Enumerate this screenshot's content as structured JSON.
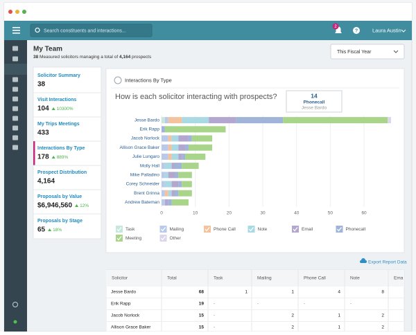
{
  "window": {
    "search_placeholder": "Search constituents and interactions...",
    "notification_count": "2",
    "user_name": "Laura Austin"
  },
  "page": {
    "title": "My Team",
    "summary": {
      "count": "38",
      "middle": "Measured solicitors managing a total of",
      "prospects": "4,164"
    },
    "period": "This Fiscal Year",
    "export": "Export Report Data"
  },
  "metrics": [
    {
      "label": "Solicitor Summary",
      "value": "38"
    },
    {
      "label": "Visit Interactions",
      "value": "104",
      "change": "10300%"
    },
    {
      "label": "My Trips Meetings",
      "value": "433"
    },
    {
      "label": "Interactions By Type",
      "value": "178",
      "change": "889%"
    },
    {
      "label": "Prospect Distribution",
      "value": "4,164"
    },
    {
      "label": "Proposals by Value",
      "value": "$6,946,560",
      "change": "12%"
    },
    {
      "label": "Proposals by Stage",
      "value": "65",
      "change": "18%"
    }
  ],
  "chart_data": {
    "type": "bar",
    "orientation": "horizontal",
    "stacked": true,
    "card_title": "Interactions By Type",
    "title": "How is each solicitor interacting with prospects?",
    "categories": [
      "Jesse Bardo",
      "Erik Rapp",
      "Jacob Norlock",
      "Allison Grace Baker",
      "Julie Lungaro",
      "Molly Hall",
      "Mike Palladino",
      "Corey Schneider",
      "Brent Grinna",
      "Andrew Bateman"
    ],
    "series": [
      {
        "name": "Task",
        "color": "#c6e8dc",
        "values": [
          1,
          0,
          0,
          0,
          0,
          0,
          0,
          0,
          0,
          0
        ]
      },
      {
        "name": "Mailing",
        "color": "#b9c9ea",
        "values": [
          1,
          0,
          2,
          2,
          2,
          1,
          1,
          1,
          1,
          1
        ]
      },
      {
        "name": "Phone Call",
        "color": "#f4c29c",
        "values": [
          4,
          0,
          1,
          1,
          1,
          0,
          0,
          0,
          1,
          0
        ]
      },
      {
        "name": "Note",
        "color": "#a9d9e3",
        "values": [
          8,
          0,
          2,
          2,
          2,
          2,
          1,
          2,
          1,
          0
        ]
      },
      {
        "name": "Email",
        "color": "#b3a6cf",
        "values": [
          8,
          0,
          3,
          2,
          1,
          1,
          2,
          2,
          1,
          1
        ]
      },
      {
        "name": "Phonecall",
        "color": "#9fb4d8",
        "values": [
          14,
          1,
          1,
          1,
          1,
          2,
          1,
          1,
          1,
          1
        ]
      },
      {
        "name": "Meeting",
        "color": "#a9d58b",
        "values": [
          31,
          18,
          6,
          7,
          6,
          5,
          4,
          3,
          4,
          5
        ]
      },
      {
        "name": "Other",
        "color": "#ddd5ec",
        "values": [
          1,
          0,
          0,
          0,
          0,
          0,
          0,
          0,
          0,
          0
        ]
      }
    ],
    "xlim": [
      0,
      68
    ],
    "xticks": [
      0,
      10,
      20,
      30,
      40,
      50,
      60
    ],
    "grid": true
  },
  "table": {
    "columns": [
      "Solicitor",
      "Total",
      "Task",
      "Mailing",
      "Phone Call",
      "Note",
      "Ema"
    ],
    "rows": [
      [
        "Jesse Bardo",
        68,
        1,
        1,
        4,
        8
      ],
      [
        "Erik Rapp",
        19,
        "-",
        "-",
        "-",
        "-"
      ],
      [
        "Jacob Norlock",
        15,
        "-",
        2,
        1,
        2
      ],
      [
        "Allison Grace Baker",
        15,
        "-",
        2,
        1,
        2
      ]
    ]
  }
}
